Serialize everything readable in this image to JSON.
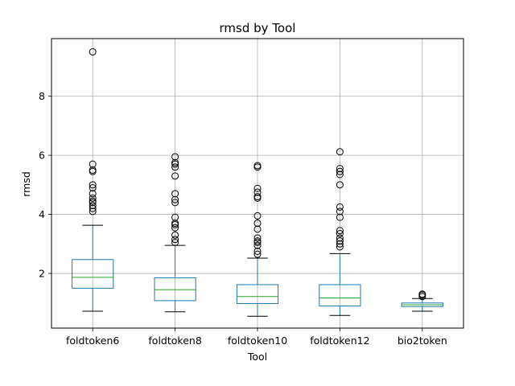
{
  "chart_data": {
    "type": "box",
    "title": "rmsd by Tool",
    "xlabel": "Tool",
    "ylabel": "rmsd",
    "ylim": [
      0.15,
      9.95
    ],
    "yticks": [
      2,
      4,
      6,
      8
    ],
    "grid": true,
    "colors": {
      "box": "#1f77b4",
      "median": "#2ca02c",
      "whisker": "#1f77b4",
      "cap": "#000000",
      "flier": "#000000",
      "grid": "#b0b0b0"
    },
    "categories": [
      "foldtoken6",
      "foldtoken8",
      "foldtoken10",
      "foldtoken12",
      "bio2token"
    ],
    "series": [
      {
        "category": "foldtoken6",
        "whislo": 0.72,
        "q1": 1.5,
        "median": 1.87,
        "q3": 2.47,
        "whishi": 3.63,
        "fliers": [
          4.1,
          4.2,
          4.3,
          4.4,
          4.45,
          4.55,
          4.7,
          4.9,
          5.0,
          5.45,
          5.5,
          5.7,
          9.5
        ]
      },
      {
        "category": "foldtoken8",
        "whislo": 0.7,
        "q1": 1.08,
        "median": 1.45,
        "q3": 1.85,
        "whishi": 2.95,
        "fliers": [
          3.05,
          3.15,
          3.3,
          3.55,
          3.65,
          3.7,
          3.9,
          4.4,
          4.5,
          4.7,
          5.3,
          5.6,
          5.7,
          5.75,
          5.95
        ]
      },
      {
        "category": "foldtoken10",
        "whislo": 0.55,
        "q1": 0.98,
        "median": 1.22,
        "q3": 1.62,
        "whishi": 2.52,
        "fliers": [
          2.65,
          2.75,
          2.95,
          3.05,
          3.1,
          3.2,
          3.5,
          3.7,
          3.95,
          4.55,
          4.6,
          4.75,
          4.88,
          5.6,
          5.65
        ]
      },
      {
        "category": "foldtoken12",
        "whislo": 0.58,
        "q1": 0.9,
        "median": 1.17,
        "q3": 1.62,
        "whishi": 2.67,
        "fliers": [
          2.9,
          3.0,
          3.1,
          3.2,
          3.35,
          3.45,
          3.9,
          4.1,
          4.25,
          5.0,
          5.35,
          5.45,
          5.55,
          6.12
        ]
      },
      {
        "category": "bio2token",
        "whislo": 0.72,
        "q1": 0.88,
        "median": 0.94,
        "q3": 1.0,
        "whishi": 1.15,
        "fliers": [
          1.22,
          1.27,
          1.3
        ]
      }
    ]
  }
}
